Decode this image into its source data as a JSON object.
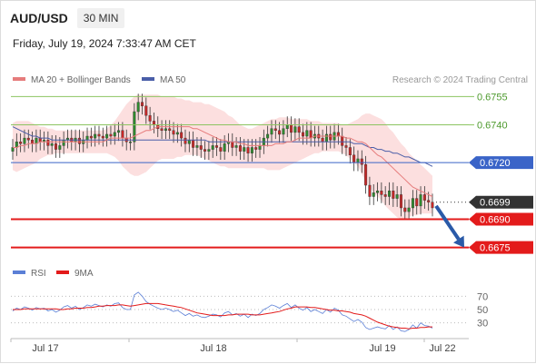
{
  "header": {
    "symbol": "AUD/USD",
    "timeframe": "30 MIN",
    "datetime": "Friday, July 19, 2024 7:33:47 AM CET"
  },
  "credit": "Research © 2024 Trading Central",
  "colors": {
    "up": "#2e8b2e",
    "down": "#c82828",
    "ma20": "#e67c7c",
    "ma50": "#4a5ea8",
    "bollinger": "#fbd9d9",
    "support": "#e31b1b",
    "current": "#333333",
    "pivot": "#3a64c8",
    "resistance": "#8cc460",
    "arrow": "#2a5aa8",
    "rsi": "#5b7fd6",
    "rsi_ma": "#e31b1b"
  },
  "chart_data": [
    {
      "type": "candlestick",
      "legend": [
        "MA 20 + Bollinger Bands",
        "MA 50"
      ],
      "legend_placement": "top-left",
      "x_ticks": [
        "Jul 17",
        "Jul 18",
        "Jul 19",
        "Jul 22"
      ],
      "ylim": [
        0.667,
        0.676
      ],
      "levels": [
        {
          "value": "0.6755",
          "kind": "resistance"
        },
        {
          "value": "0.6740",
          "kind": "resistance"
        },
        {
          "value": "0.6720",
          "kind": "pivot"
        },
        {
          "value": "0.6699",
          "kind": "current"
        },
        {
          "value": "0.6690",
          "kind": "support"
        },
        {
          "value": "0.6675",
          "kind": "support"
        }
      ],
      "forecast_arrow": {
        "from": 0.6697,
        "to": 0.6675
      },
      "closes": [
        0.6728,
        0.6731,
        0.673,
        0.6733,
        0.6732,
        0.673,
        0.6733,
        0.6731,
        0.6732,
        0.6729,
        0.673,
        0.6727,
        0.6729,
        0.6732,
        0.6733,
        0.6731,
        0.6733,
        0.673,
        0.6732,
        0.6734,
        0.6733,
        0.6735,
        0.6734,
        0.6733,
        0.6735,
        0.6734,
        0.6736,
        0.6737,
        0.6733,
        0.6731,
        0.6731,
        0.6747,
        0.6752,
        0.675,
        0.6745,
        0.6742,
        0.674,
        0.6738,
        0.6737,
        0.6738,
        0.6737,
        0.6735,
        0.6736,
        0.6733,
        0.673,
        0.6732,
        0.6728,
        0.6729,
        0.6727,
        0.6726,
        0.6727,
        0.6729,
        0.6728,
        0.6726,
        0.673,
        0.6731,
        0.6728,
        0.6729,
        0.6726,
        0.6728,
        0.6725,
        0.6728,
        0.6727,
        0.6729,
        0.6733,
        0.6735,
        0.6738,
        0.6737,
        0.6735,
        0.6738,
        0.674,
        0.6736,
        0.6739,
        0.6736,
        0.6734,
        0.6737,
        0.6733,
        0.6735,
        0.6733,
        0.6731,
        0.6735,
        0.6732,
        0.6736,
        0.6734,
        0.6729,
        0.6728,
        0.6724,
        0.672,
        0.6722,
        0.6719,
        0.6708,
        0.6702,
        0.6704,
        0.6705,
        0.6703,
        0.6702,
        0.6705,
        0.6701,
        0.6703,
        0.6696,
        0.6694,
        0.6696,
        0.6701,
        0.6697,
        0.6703,
        0.67,
        0.6699,
        0.6696
      ],
      "ma20": [
        0.6728,
        0.6728,
        0.6729,
        0.6729,
        0.673,
        0.673,
        0.673,
        0.6731,
        0.6731,
        0.6731,
        0.6731,
        0.6731,
        0.6731,
        0.6731,
        0.6731,
        0.6731,
        0.6731,
        0.6731,
        0.6731,
        0.6731,
        0.6731,
        0.6731,
        0.6731,
        0.6731,
        0.6732,
        0.6733,
        0.6733,
        0.6733,
        0.6733,
        0.6733,
        0.6733,
        0.6734,
        0.6735,
        0.6736,
        0.6737,
        0.6737,
        0.6738,
        0.6739,
        0.6739,
        0.6739,
        0.6739,
        0.6739,
        0.6739,
        0.6739,
        0.6739,
        0.6739,
        0.6738,
        0.6738,
        0.6737,
        0.6736,
        0.6735,
        0.6734,
        0.6733,
        0.6732,
        0.6732,
        0.6731,
        0.6731,
        0.6731,
        0.673,
        0.673,
        0.6729,
        0.6729,
        0.6729,
        0.6729,
        0.6729,
        0.6729,
        0.6729,
        0.673,
        0.673,
        0.673,
        0.6731,
        0.6731,
        0.6732,
        0.6733,
        0.6733,
        0.6733,
        0.6733,
        0.6734,
        0.6734,
        0.6734,
        0.6734,
        0.6734,
        0.6734,
        0.6734,
        0.6734,
        0.6733,
        0.6733,
        0.6732,
        0.6731,
        0.6731,
        0.673,
        0.6728,
        0.6726,
        0.6724,
        0.6723,
        0.6721,
        0.6719,
        0.6717,
        0.6715,
        0.6713,
        0.6711,
        0.6709,
        0.6707,
        0.6706,
        0.6705,
        0.6704,
        0.6703,
        0.6702
      ],
      "boll_upper": [
        0.6741,
        0.6742,
        0.6742,
        0.6742,
        0.6742,
        0.6741,
        0.674,
        0.6739,
        0.6739,
        0.6738,
        0.6738,
        0.6737,
        0.6737,
        0.6737,
        0.6737,
        0.6737,
        0.6737,
        0.6737,
        0.6737,
        0.6737,
        0.6737,
        0.6737,
        0.6737,
        0.6737,
        0.6738,
        0.674,
        0.6742,
        0.6745,
        0.6748,
        0.6751,
        0.6753,
        0.6755,
        0.6756,
        0.6756,
        0.6756,
        0.6756,
        0.6756,
        0.6756,
        0.6755,
        0.6755,
        0.6755,
        0.6755,
        0.6754,
        0.6754,
        0.6753,
        0.6753,
        0.6752,
        0.6752,
        0.6752,
        0.6751,
        0.6751,
        0.675,
        0.6749,
        0.6748,
        0.6747,
        0.6745,
        0.6744,
        0.6742,
        0.674,
        0.6739,
        0.6738,
        0.6738,
        0.6739,
        0.674,
        0.6741,
        0.6742,
        0.6743,
        0.6743,
        0.6744,
        0.6744,
        0.6744,
        0.6743,
        0.6743,
        0.6743,
        0.6743,
        0.6743,
        0.6742,
        0.6742,
        0.6742,
        0.6741,
        0.6741,
        0.6741,
        0.6741,
        0.6741,
        0.674,
        0.674,
        0.6741,
        0.6742,
        0.6743,
        0.6745,
        0.6746,
        0.6746,
        0.6745,
        0.6744,
        0.6743,
        0.6741,
        0.6738,
        0.6736,
        0.6733,
        0.673,
        0.6728,
        0.6725,
        0.6723,
        0.6721,
        0.6719,
        0.6717,
        0.6715,
        0.6713
      ],
      "boll_lower": [
        0.6716,
        0.6715,
        0.6716,
        0.6717,
        0.6718,
        0.6719,
        0.672,
        0.6722,
        0.6723,
        0.6724,
        0.6724,
        0.6725,
        0.6725,
        0.6725,
        0.6725,
        0.6725,
        0.6725,
        0.6725,
        0.6725,
        0.6725,
        0.6725,
        0.6725,
        0.6725,
        0.6725,
        0.6725,
        0.6724,
        0.6723,
        0.6721,
        0.6718,
        0.6716,
        0.6714,
        0.6713,
        0.6713,
        0.6714,
        0.6715,
        0.6717,
        0.6719,
        0.6721,
        0.6722,
        0.6722,
        0.6722,
        0.6722,
        0.6723,
        0.6723,
        0.6724,
        0.6724,
        0.6724,
        0.6724,
        0.6723,
        0.6722,
        0.6721,
        0.672,
        0.6719,
        0.6718,
        0.6718,
        0.6717,
        0.6717,
        0.6717,
        0.6717,
        0.6717,
        0.6717,
        0.6717,
        0.6717,
        0.6717,
        0.6717,
        0.6716,
        0.6716,
        0.6716,
        0.6716,
        0.6717,
        0.6718,
        0.6719,
        0.672,
        0.6721,
        0.6722,
        0.6723,
        0.6724,
        0.6725,
        0.6725,
        0.6726,
        0.6726,
        0.6726,
        0.6726,
        0.6726,
        0.6725,
        0.6724,
        0.6722,
        0.672,
        0.6718,
        0.6714,
        0.671,
        0.6707,
        0.6704,
        0.6702,
        0.67,
        0.6697,
        0.6695,
        0.6693,
        0.6691,
        0.669,
        0.669,
        0.6691,
        0.6692,
        0.6692,
        0.6693,
        0.6693,
        0.6693,
        0.6693
      ],
      "ma50": [
        0.6739,
        0.6738,
        0.6737,
        0.6736,
        0.6735,
        0.6734,
        0.6734,
        0.6733,
        0.6733,
        0.6733,
        0.6732,
        0.6732,
        0.6732,
        0.6732,
        0.6732,
        0.6732,
        0.6732,
        0.6732,
        0.6732,
        0.6732,
        0.6732,
        0.6732,
        0.6732,
        0.6732,
        0.6732,
        0.6732,
        0.6732,
        0.6732,
        0.6732,
        0.6732,
        0.6732,
        0.6732,
        0.6732,
        0.6732,
        0.6732,
        0.6732,
        0.6732,
        0.6732,
        0.6732,
        0.6732,
        0.6732,
        0.6732,
        0.6732,
        0.6732,
        0.6732,
        0.6732,
        0.6732,
        0.6732,
        0.6732,
        0.6732,
        0.6731,
        0.6731,
        0.6731,
        0.6731,
        0.6731,
        0.6731,
        0.6731,
        0.6731,
        0.6731,
        0.6731,
        0.6731,
        0.6731,
        0.6731,
        0.6731,
        0.6731,
        0.6731,
        0.6731,
        0.6731,
        0.6731,
        0.6731,
        0.6731,
        0.6731,
        0.6731,
        0.6731,
        0.6731,
        0.6731,
        0.6731,
        0.6731,
        0.6731,
        0.6731,
        0.6731,
        0.6731,
        0.6731,
        0.6731,
        0.6731,
        0.6731,
        0.6731,
        0.673,
        0.673,
        0.673,
        0.6729,
        0.6728,
        0.6728,
        0.6727,
        0.6727,
        0.6726,
        0.6726,
        0.6725,
        0.6725,
        0.6724,
        0.6723,
        0.6723,
        0.6722,
        0.6721,
        0.672,
        0.672,
        0.6719,
        0.6718
      ]
    },
    {
      "type": "line",
      "legend": [
        "RSI",
        "9MA"
      ],
      "legend_placement": "top-left",
      "y_ticks": [
        "70",
        "50",
        "30"
      ],
      "ylim": [
        20,
        80
      ],
      "rsi": [
        48,
        52,
        50,
        54,
        52,
        49,
        53,
        51,
        52,
        48,
        50,
        46,
        49,
        54,
        56,
        52,
        55,
        50,
        53,
        57,
        55,
        58,
        56,
        54,
        57,
        55,
        59,
        60,
        53,
        50,
        50,
        72,
        76,
        70,
        62,
        58,
        55,
        52,
        50,
        52,
        50,
        47,
        49,
        45,
        41,
        44,
        40,
        42,
        39,
        38,
        40,
        43,
        42,
        39,
        45,
        47,
        42,
        44,
        40,
        43,
        38,
        43,
        41,
        44,
        50,
        53,
        57,
        55,
        52,
        56,
        59,
        53,
        57,
        52,
        49,
        53,
        47,
        50,
        47,
        44,
        50,
        46,
        52,
        49,
        42,
        40,
        36,
        32,
        35,
        31,
        23,
        20,
        22,
        24,
        22,
        21,
        26,
        20,
        24,
        18,
        17,
        20,
        27,
        22,
        30,
        26,
        25,
        22
      ],
      "rsi_ma": [
        50,
        50,
        50,
        51,
        51,
        51,
        51,
        51,
        51,
        51,
        51,
        51,
        50,
        50,
        51,
        51,
        52,
        52,
        52,
        53,
        53,
        54,
        55,
        55,
        56,
        56,
        56,
        57,
        57,
        56,
        55,
        56,
        57,
        58,
        59,
        59,
        59,
        59,
        58,
        57,
        56,
        55,
        54,
        53,
        51,
        49,
        47,
        45,
        44,
        43,
        42,
        41,
        41,
        41,
        41,
        42,
        42,
        43,
        43,
        43,
        43,
        42,
        42,
        42,
        43,
        44,
        45,
        46,
        47,
        49,
        51,
        52,
        54,
        54,
        54,
        54,
        53,
        53,
        52,
        51,
        50,
        49,
        49,
        48,
        48,
        47,
        46,
        44,
        43,
        42,
        40,
        37,
        34,
        31,
        29,
        27,
        25,
        24,
        23,
        22,
        22,
        21,
        22,
        22,
        23,
        23,
        24,
        24
      ]
    }
  ]
}
